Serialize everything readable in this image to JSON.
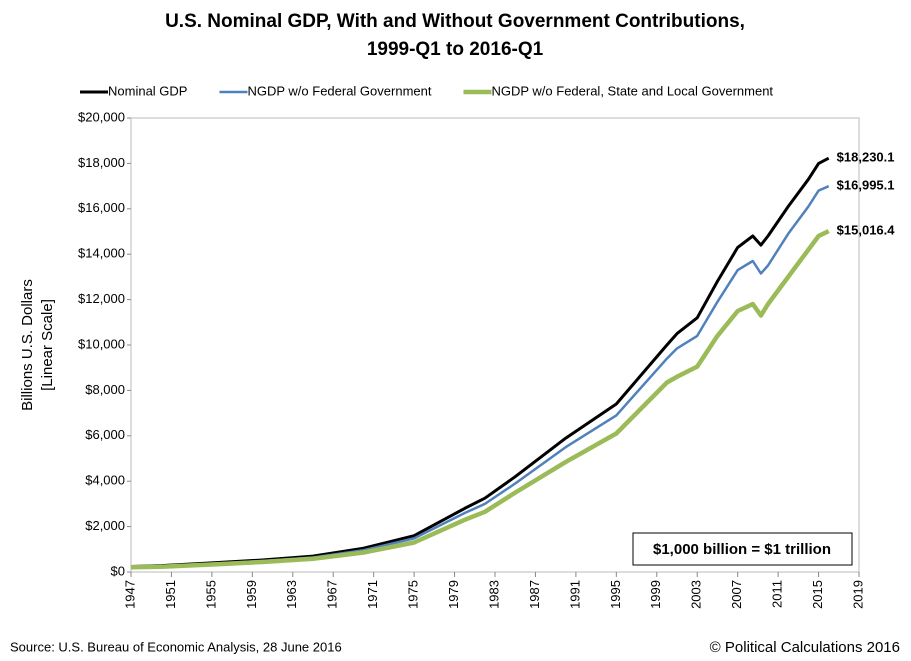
{
  "chart_data": {
    "type": "line",
    "title": [
      "U.S. Nominal GDP, With and Without Government Contributions,",
      "1999-Q1 to 2016-Q1"
    ],
    "y_label": [
      "Billions U.S. Dollars",
      "[Linear Scale]"
    ],
    "annotation": "$1,000 billion = $1 trillion",
    "source": "Source: U.S. Bureau of Economic Analysis, 28 June 2016",
    "credit": "© Political Calculations 2016",
    "x": [
      1947,
      1950,
      1955,
      1960,
      1965,
      1970,
      1975,
      1980,
      1982,
      1985,
      1990,
      1995,
      2000,
      2001,
      2003,
      2005,
      2007,
      2008.5,
      2009.3,
      2010,
      2012,
      2014,
      2015,
      2016
    ],
    "series": [
      {
        "name": "Nominal GDP",
        "color": "#000000",
        "width": 3,
        "values": [
          243,
          280,
          400,
          530,
          700,
          1050,
          1600,
          2800,
          3250,
          4200,
          5900,
          7400,
          10000,
          10500,
          11200,
          12800,
          14300,
          14800,
          14400,
          14800,
          16100,
          17300,
          18000,
          18230.1
        ],
        "value_labels": [
          null,
          null,
          null,
          null,
          null,
          null,
          null,
          null,
          null,
          null,
          null,
          null,
          null,
          null,
          null,
          null,
          null,
          null,
          null,
          null,
          null,
          null,
          null,
          "$18,230.1"
        ]
      },
      {
        "name": "NGDP w/o Federal Government",
        "color": "#4f81bd",
        "width": 2.5,
        "values": [
          225,
          260,
          360,
          485,
          640,
          960,
          1480,
          2600,
          3000,
          3900,
          5500,
          6900,
          9400,
          9850,
          10400,
          11900,
          13300,
          13700,
          13150,
          13500,
          14900,
          16100,
          16800,
          16995.1
        ],
        "value_labels": [
          null,
          null,
          null,
          null,
          null,
          null,
          null,
          null,
          null,
          null,
          null,
          null,
          null,
          null,
          null,
          null,
          null,
          null,
          null,
          null,
          null,
          null,
          null,
          "$16,995.1"
        ]
      },
      {
        "name": "NGDP w/o Federal, State and Local Government",
        "color": "#9bbb59",
        "width": 4.5,
        "values": [
          205,
          235,
          330,
          440,
          580,
          860,
          1300,
          2300,
          2650,
          3500,
          4850,
          6100,
          8350,
          8600,
          9050,
          10400,
          11500,
          11800,
          11300,
          11800,
          13000,
          14200,
          14800,
          15016.4
        ],
        "value_labels": [
          null,
          null,
          null,
          null,
          null,
          null,
          null,
          null,
          null,
          null,
          null,
          null,
          null,
          null,
          null,
          null,
          null,
          null,
          null,
          null,
          null,
          null,
          null,
          "$15,016.4"
        ]
      }
    ],
    "xlim": [
      1947,
      2019
    ],
    "xticks": [
      1947,
      1951,
      1955,
      1959,
      1963,
      1967,
      1971,
      1975,
      1979,
      1983,
      1987,
      1991,
      1995,
      1999,
      2003,
      2007,
      2011,
      2015,
      2019
    ],
    "ylim": [
      0,
      20000
    ],
    "yticks": [
      {
        "value": 0,
        "label": "$0"
      },
      {
        "value": 2000,
        "label": "$2,000"
      },
      {
        "value": 4000,
        "label": "$4,000"
      },
      {
        "value": 6000,
        "label": "$6,000"
      },
      {
        "value": 8000,
        "label": "$8,000"
      },
      {
        "value": 10000,
        "label": "$10,000"
      },
      {
        "value": 12000,
        "label": "$12,000"
      },
      {
        "value": 14000,
        "label": "$14,000"
      },
      {
        "value": 16000,
        "label": "$16,000"
      },
      {
        "value": 18000,
        "label": "$18,000"
      },
      {
        "value": 20000,
        "label": "$20,000"
      }
    ],
    "grid": false
  }
}
